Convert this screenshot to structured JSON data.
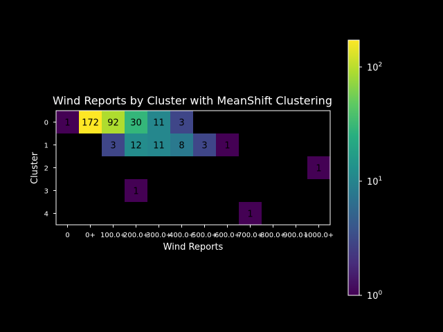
{
  "chart_data": {
    "type": "heatmap",
    "title": "Wind Reports by Cluster with MeanShift Clustering",
    "xlabel": "Wind Reports",
    "ylabel": "Cluster",
    "x_categories": [
      "0",
      "0+",
      "100.0+",
      "200.0+",
      "300.0+",
      "400.0+",
      "500.0+",
      "600.0+",
      "700.0+",
      "800.0+",
      "900.0+",
      "1000.0+"
    ],
    "y_categories": [
      "0",
      "1",
      "2",
      "3",
      "4"
    ],
    "values": [
      [
        1,
        172,
        92,
        30,
        11,
        3,
        null,
        null,
        null,
        null,
        null,
        null
      ],
      [
        null,
        null,
        3,
        12,
        11,
        8,
        3,
        1,
        null,
        null,
        null,
        null
      ],
      [
        null,
        null,
        null,
        null,
        null,
        null,
        null,
        null,
        null,
        null,
        null,
        1
      ],
      [
        null,
        null,
        null,
        1,
        null,
        null,
        null,
        null,
        null,
        null,
        null,
        null
      ],
      [
        null,
        null,
        null,
        null,
        null,
        null,
        null,
        null,
        1,
        null,
        null,
        null
      ]
    ],
    "color_scale": "log",
    "colormap": "viridis",
    "colorbar": {
      "range": [
        1,
        172
      ],
      "tick_labels": [
        {
          "base": "10",
          "exp": "0",
          "value": 1
        },
        {
          "base": "10",
          "exp": "1",
          "value": 10
        },
        {
          "base": "10",
          "exp": "2",
          "value": 100
        }
      ]
    }
  }
}
